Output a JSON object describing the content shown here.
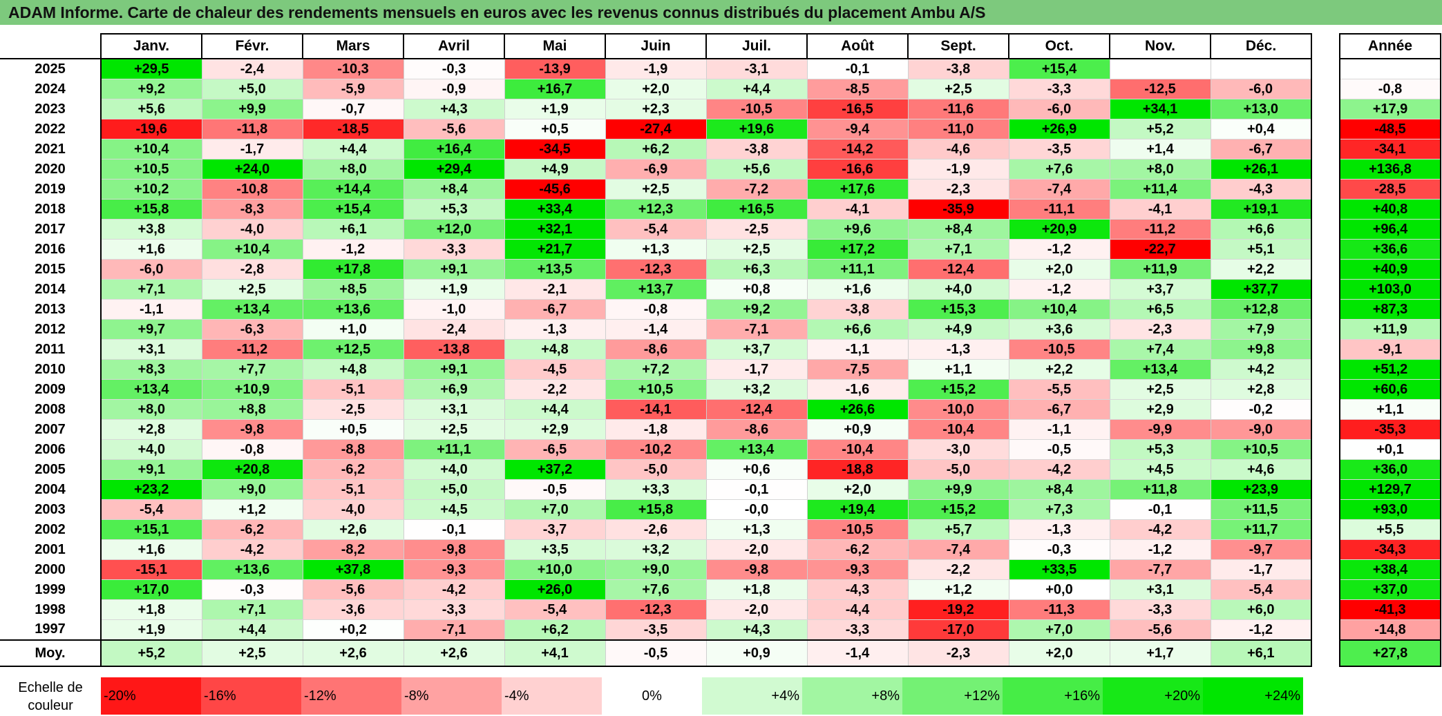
{
  "title": "ADAM Informe. Carte de chaleur des rendements mensuels en euros avec les revenus connus distribués du placement Ambu A/S",
  "months": [
    "Janv.",
    "Févr.",
    "Mars",
    "Avril",
    "Mai",
    "Juin",
    "Juil.",
    "Août",
    "Sept.",
    "Oct.",
    "Nov.",
    "Déc."
  ],
  "annual_header": "Année",
  "average_label": "Moy.",
  "scale_label": "Echelle de couleur",
  "colors": {
    "negative_max": "#ff0000",
    "positive_max": "#00ee00",
    "neutral": "#ffffff",
    "title_bar": "#7dc97d"
  },
  "chart_data": {
    "type": "heatmap",
    "title": "ADAM Informe. Carte de chaleur des rendements mensuels en euros avec les revenus connus distribués du placement Ambu A/S",
    "columns": [
      "Janv.",
      "Févr.",
      "Mars",
      "Avril",
      "Mai",
      "Juin",
      "Juil.",
      "Août",
      "Sept.",
      "Oct.",
      "Nov.",
      "Déc."
    ],
    "rows": [
      {
        "year": "2025",
        "values": [
          "+29,5",
          "-2,4",
          "-10,3",
          "-0,3",
          "-13,9",
          "-1,9",
          "-3,1",
          "-0,1",
          "-3,8",
          "+15,4",
          "",
          ""
        ],
        "annual": ""
      },
      {
        "year": "2024",
        "values": [
          "+9,2",
          "+5,0",
          "-5,9",
          "-0,9",
          "+16,7",
          "+2,0",
          "+4,4",
          "-8,5",
          "+2,5",
          "-3,3",
          "-12,5",
          "-6,0"
        ],
        "annual": "-0,8"
      },
      {
        "year": "2023",
        "values": [
          "+5,6",
          "+9,9",
          "-0,7",
          "+4,3",
          "+1,9",
          "+2,3",
          "-10,5",
          "-16,5",
          "-11,6",
          "-6,0",
          "+34,1",
          "+13,0"
        ],
        "annual": "+17,9"
      },
      {
        "year": "2022",
        "values": [
          "-19,6",
          "-11,8",
          "-18,5",
          "-5,6",
          "+0,5",
          "-27,4",
          "+19,6",
          "-9,4",
          "-11,0",
          "+26,9",
          "+5,2",
          "+0,4"
        ],
        "annual": "-48,5"
      },
      {
        "year": "2021",
        "values": [
          "+10,4",
          "-1,7",
          "+4,4",
          "+16,4",
          "-34,5",
          "+6,2",
          "-3,8",
          "-14,2",
          "-4,6",
          "-3,5",
          "+1,4",
          "-6,7"
        ],
        "annual": "-34,1"
      },
      {
        "year": "2020",
        "values": [
          "+10,5",
          "+24,0",
          "+8,0",
          "+29,4",
          "+4,9",
          "-6,9",
          "+5,6",
          "-16,6",
          "-1,9",
          "+7,6",
          "+8,0",
          "+26,1"
        ],
        "annual": "+136,8"
      },
      {
        "year": "2019",
        "values": [
          "+10,2",
          "-10,8",
          "+14,4",
          "+8,4",
          "-45,6",
          "+2,5",
          "-7,2",
          "+17,6",
          "-2,3",
          "-7,4",
          "+11,4",
          "-4,3"
        ],
        "annual": "-28,5"
      },
      {
        "year": "2018",
        "values": [
          "+15,8",
          "-8,3",
          "+15,4",
          "+5,3",
          "+33,4",
          "+12,3",
          "+16,5",
          "-4,1",
          "-35,9",
          "-11,1",
          "-4,1",
          "+19,1"
        ],
        "annual": "+40,8"
      },
      {
        "year": "2017",
        "values": [
          "+3,8",
          "-4,0",
          "+6,1",
          "+12,0",
          "+32,1",
          "-5,4",
          "-2,5",
          "+9,6",
          "+8,4",
          "+20,9",
          "-11,2",
          "+6,6"
        ],
        "annual": "+96,4"
      },
      {
        "year": "2016",
        "values": [
          "+1,6",
          "+10,4",
          "-1,2",
          "-3,3",
          "+21,7",
          "+1,3",
          "+2,5",
          "+17,2",
          "+7,1",
          "-1,2",
          "-22,7",
          "+5,1"
        ],
        "annual": "+36,6"
      },
      {
        "year": "2015",
        "values": [
          "-6,0",
          "-2,8",
          "+17,8",
          "+9,1",
          "+13,5",
          "-12,3",
          "+6,3",
          "+11,1",
          "-12,4",
          "+2,0",
          "+11,9",
          "+2,2"
        ],
        "annual": "+40,9"
      },
      {
        "year": "2014",
        "values": [
          "+7,1",
          "+2,5",
          "+8,5",
          "+1,9",
          "-2,1",
          "+13,7",
          "+0,8",
          "+1,6",
          "+4,0",
          "-1,2",
          "+3,7",
          "+37,7"
        ],
        "annual": "+103,0"
      },
      {
        "year": "2013",
        "values": [
          "-1,1",
          "+13,4",
          "+13,6",
          "-1,0",
          "-6,7",
          "-0,8",
          "+9,2",
          "-3,8",
          "+15,3",
          "+10,4",
          "+6,5",
          "+12,8"
        ],
        "annual": "+87,3"
      },
      {
        "year": "2012",
        "values": [
          "+9,7",
          "-6,3",
          "+1,0",
          "-2,4",
          "-1,3",
          "-1,4",
          "-7,1",
          "+6,6",
          "+4,9",
          "+3,6",
          "-2,3",
          "+7,9"
        ],
        "annual": "+11,9"
      },
      {
        "year": "2011",
        "values": [
          "+3,1",
          "-11,2",
          "+12,5",
          "-13,8",
          "+4,8",
          "-8,6",
          "+3,7",
          "-1,1",
          "-1,3",
          "-10,5",
          "+7,4",
          "+9,8"
        ],
        "annual": "-9,1"
      },
      {
        "year": "2010",
        "values": [
          "+8,3",
          "+7,7",
          "+4,8",
          "+9,1",
          "-4,5",
          "+7,2",
          "-1,7",
          "-7,5",
          "+1,1",
          "+2,2",
          "+13,4",
          "+4,2"
        ],
        "annual": "+51,2"
      },
      {
        "year": "2009",
        "values": [
          "+13,4",
          "+10,9",
          "-5,1",
          "+6,9",
          "-2,2",
          "+10,5",
          "+3,2",
          "-1,6",
          "+15,2",
          "-5,5",
          "+2,5",
          "+2,8"
        ],
        "annual": "+60,6"
      },
      {
        "year": "2008",
        "values": [
          "+8,0",
          "+8,8",
          "-2,5",
          "+3,1",
          "+4,4",
          "-14,1",
          "-12,4",
          "+26,6",
          "-10,0",
          "-6,7",
          "+2,9",
          "-0,2"
        ],
        "annual": "+1,1"
      },
      {
        "year": "2007",
        "values": [
          "+2,8",
          "-9,8",
          "+0,5",
          "+2,5",
          "+2,9",
          "-1,8",
          "-8,6",
          "+0,9",
          "-10,4",
          "-1,1",
          "-9,9",
          "-9,0"
        ],
        "annual": "-35,3"
      },
      {
        "year": "2006",
        "values": [
          "+4,0",
          "-0,8",
          "-8,8",
          "+11,1",
          "-6,5",
          "-10,2",
          "+13,4",
          "-10,4",
          "-3,0",
          "-0,5",
          "+5,3",
          "+10,5"
        ],
        "annual": "+0,1"
      },
      {
        "year": "2005",
        "values": [
          "+9,1",
          "+20,8",
          "-6,2",
          "+4,0",
          "+37,2",
          "-5,0",
          "+0,6",
          "-18,8",
          "-5,0",
          "-4,2",
          "+4,5",
          "+4,6"
        ],
        "annual": "+36,0"
      },
      {
        "year": "2004",
        "values": [
          "+23,2",
          "+9,0",
          "-5,1",
          "+5,0",
          "-0,5",
          "+3,3",
          "-0,1",
          "+2,0",
          "+9,9",
          "+8,4",
          "+11,8",
          "+23,9"
        ],
        "annual": "+129,7"
      },
      {
        "year": "2003",
        "values": [
          "-5,4",
          "+1,2",
          "-4,0",
          "+4,5",
          "+7,0",
          "+15,8",
          "-0,0",
          "+19,4",
          "+15,2",
          "+7,3",
          "-0,1",
          "+11,5"
        ],
        "annual": "+93,0"
      },
      {
        "year": "2002",
        "values": [
          "+15,1",
          "-6,2",
          "+2,6",
          "-0,1",
          "-3,7",
          "-2,6",
          "+1,3",
          "-10,5",
          "+5,7",
          "-1,3",
          "-4,2",
          "+11,7"
        ],
        "annual": "+5,5"
      },
      {
        "year": "2001",
        "values": [
          "+1,6",
          "-4,2",
          "-8,2",
          "-9,8",
          "+3,5",
          "+3,2",
          "-2,0",
          "-6,2",
          "-7,4",
          "-0,3",
          "-1,2",
          "-9,7"
        ],
        "annual": "-34,3"
      },
      {
        "year": "2000",
        "values": [
          "-15,1",
          "+13,6",
          "+37,8",
          "-9,3",
          "+10,0",
          "+9,0",
          "-9,8",
          "-9,3",
          "-2,2",
          "+33,5",
          "-7,7",
          "-1,7"
        ],
        "annual": "+38,4"
      },
      {
        "year": "1999",
        "values": [
          "+17,0",
          "-0,3",
          "-5,6",
          "-4,2",
          "+26,0",
          "+7,6",
          "+1,8",
          "-4,3",
          "+1,2",
          "+0,0",
          "+3,1",
          "-5,4"
        ],
        "annual": "+37,0"
      },
      {
        "year": "1998",
        "values": [
          "+1,8",
          "+7,1",
          "-3,6",
          "-3,3",
          "-5,4",
          "-12,3",
          "-2,0",
          "-4,4",
          "-19,2",
          "-11,3",
          "-3,3",
          "+6,0"
        ],
        "annual": "-41,3"
      },
      {
        "year": "1997",
        "values": [
          "+1,9",
          "+4,4",
          "+0,2",
          "-7,1",
          "+6,2",
          "-3,5",
          "+4,3",
          "-3,3",
          "-17,0",
          "+7,0",
          "-5,6",
          "-1,2"
        ],
        "annual": "-14,8"
      }
    ],
    "average": {
      "label": "Moy.",
      "values": [
        "+5,2",
        "+2,5",
        "+2,6",
        "+2,6",
        "+4,1",
        "-0,5",
        "+0,9",
        "-1,4",
        "-2,3",
        "+2,0",
        "+1,7",
        "+6,1"
      ],
      "annual": "+27,8"
    },
    "scale": [
      "-20%",
      "-16%",
      "-12%",
      "-8%",
      "-4%",
      "0%",
      "+4%",
      "+8%",
      "+12%",
      "+16%",
      "+20%",
      "+24%"
    ],
    "scale_values": [
      -20,
      -16,
      -12,
      -8,
      -4,
      0,
      4,
      8,
      12,
      16,
      20,
      24
    ]
  }
}
